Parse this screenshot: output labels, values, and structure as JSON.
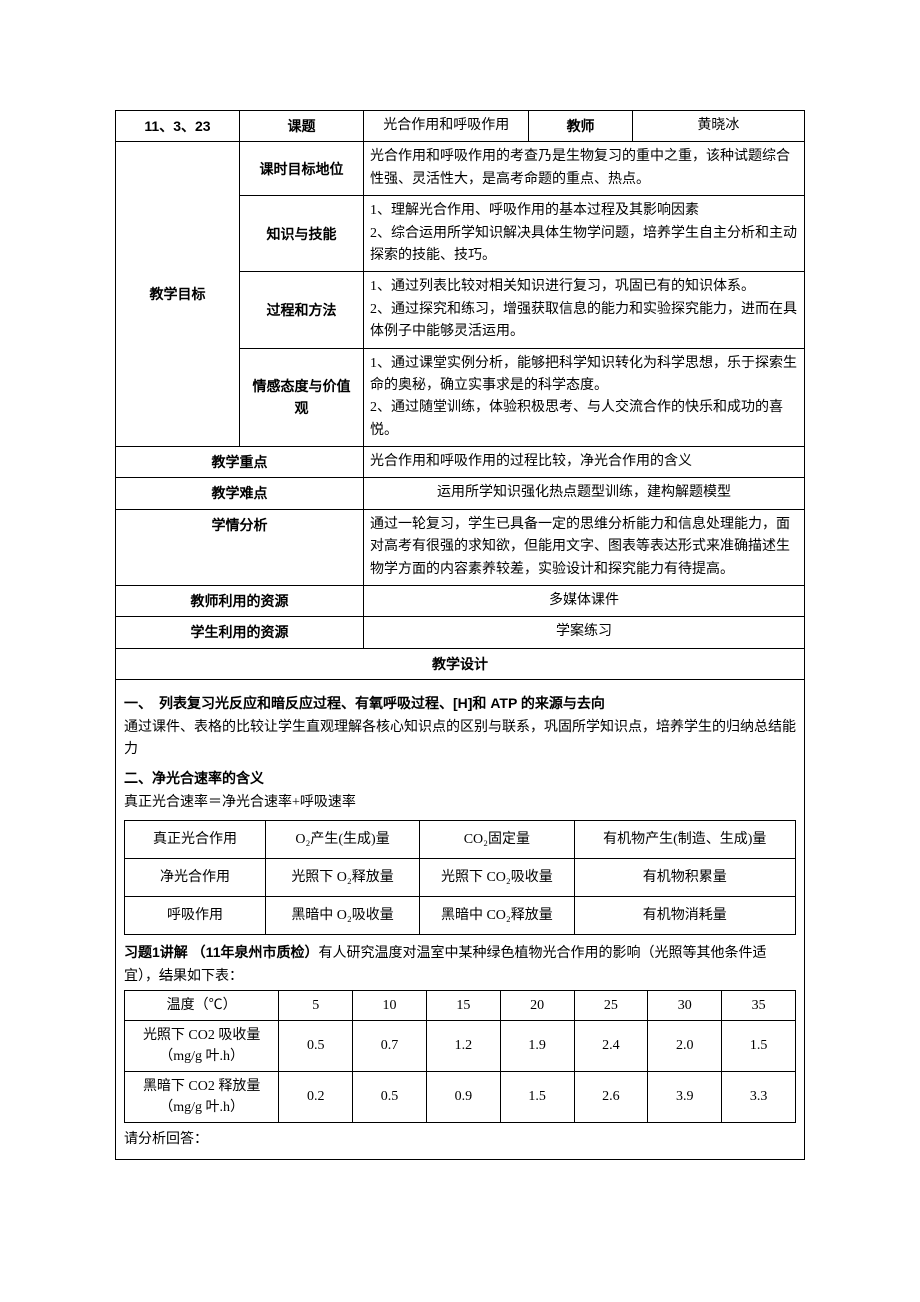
{
  "header": {
    "date": "11、3、23",
    "topic_label": "课题",
    "topic_value": "光合作用和呼吸作用",
    "teacher_label": "教师",
    "teacher_value": "黄晓冰"
  },
  "goals": {
    "section_label": "教学目标",
    "rows": [
      {
        "label": "课时目标地位",
        "content": "光合作用和呼吸作用的考查乃是生物复习的重中之重，该种试题综合性强、灵活性大，是高考命题的重点、热点。"
      },
      {
        "label": "知识与技能",
        "content": "1、理解光合作用、呼吸作用的基本过程及其影响因素\n2、综合运用所学知识解决具体生物学问题，培养学生自主分析和主动探索的技能、技巧。"
      },
      {
        "label": "过程和方法",
        "content": "1、通过列表比较对相关知识进行复习，巩固已有的知识体系。\n2、通过探究和练习，增强获取信息的能力和实验探究能力，进而在具体例子中能够灵活运用。"
      },
      {
        "label": "情感态度与价值观",
        "content": "1、通过课堂实例分析，能够把科学知识转化为科学思想，乐于探索生命的奥秘，确立实事求是的科学态度。\n2、通过随堂训练，体验积极思考、与人交流合作的快乐和成功的喜悦。"
      }
    ]
  },
  "focus": {
    "label": "教学重点",
    "content": "光合作用和呼吸作用的过程比较，净光合作用的含义"
  },
  "difficulty": {
    "label": "教学难点",
    "content": "运用所学知识强化热点题型训练，建构解题模型"
  },
  "analysis": {
    "label": "学情分析",
    "content": "通过一轮复习，学生已具备一定的思维分析能力和信息处理能力，面对高考有很强的求知欲，但能用文字、图表等表达形式来准确描述生物学方面的内容素养较差，实验设计和探究能力有待提高。"
  },
  "teacher_res": {
    "label": "教师利用的资源",
    "content": "多媒体课件"
  },
  "student_res": {
    "label": "学生利用的资源",
    "content": "学案练习"
  },
  "design_label": "教学设计",
  "section1": {
    "heading": "一、　列表复习光反应和暗反应过程、有氧呼吸过程、[H]和 ATP 的来源与去向",
    "body": "通过课件、表格的比较让学生直观理解各核心知识点的区别与联系，巩固所学知识点，培养学生的归纳总结能力"
  },
  "section2": {
    "heading": "二、净光合速率的含义",
    "formula": "真正光合速率＝净光合速率+呼吸速率",
    "table": {
      "rows": [
        [
          "真正光合作用",
          "O₂产生(生成)量",
          "CO₂固定量",
          "有机物产生(制造、生成)量"
        ],
        [
          "净光合作用",
          "光照下 O₂释放量",
          "光照下 CO₂吸收量",
          "有机物积累量"
        ],
        [
          "呼吸作用",
          "黑暗中 O₂吸收量",
          "黑暗中 CO₂释放量",
          "有机物消耗量"
        ]
      ],
      "col_widths": [
        "21%",
        "23%",
        "23%",
        "33%"
      ]
    }
  },
  "exercise": {
    "intro_bold": "习题1讲解 （11年泉州市质检）",
    "intro_rest_a": "有人研究温度对温室中某种绿色植物光合作用的影响（光照等其他条件适宜），",
    "intro_strike": "结",
    "intro_rest_b": "果如下表：",
    "table": {
      "header": [
        "温度（℃）",
        "5",
        "10",
        "15",
        "20",
        "25",
        "30",
        "35"
      ],
      "rows": [
        {
          "label": "光照下 CO2 吸收量（mg/g 叶.h）",
          "vals": [
            "0.5",
            "0.7",
            "1.2",
            "1.9",
            "2.4",
            "2.0",
            "1.5"
          ]
        },
        {
          "label": "黑暗下 CO2 释放量（mg/g 叶.h）",
          "vals": [
            "0.2",
            "0.5",
            "0.9",
            "1.5",
            "2.6",
            "3.9",
            "3.3"
          ]
        }
      ],
      "label_width": "23%",
      "val_width": "11%"
    },
    "tail": "请分析回答："
  }
}
